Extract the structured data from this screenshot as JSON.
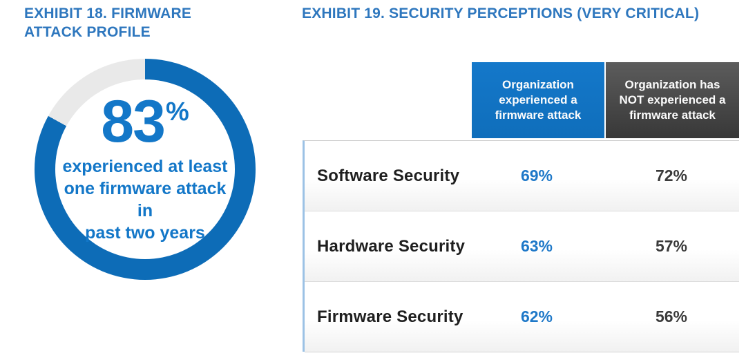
{
  "exhibit18": {
    "title": "EXHIBIT 18. FIRMWARE ATTACK PROFILE",
    "title_lines": [
      "EXHIBIT 18. FIRMWARE",
      "ATTACK PROFILE"
    ]
  },
  "exhibit19": {
    "title": "EXHIBIT 19. SECURITY PERCEPTIONS (VERY CRITICAL)"
  },
  "colors": {
    "title_blue": "#2e77be",
    "donut_blue": "#0d6cb7",
    "donut_remainder_gray": "#e9e9e9",
    "center_text_blue": "#1377c8",
    "value_blue": "#1e78c8",
    "value_dark": "#3a3a3a",
    "row_label_dark": "#1f1f1f",
    "header_blue": "#1173c4",
    "header_gray": "#4a4a4a",
    "table_left_border_blue": "#9cc2e5"
  },
  "chart_data": [
    {
      "type": "pie",
      "subtype": "donut",
      "title": "EXHIBIT 18. FIRMWARE ATTACK PROFILE",
      "slices": [
        {
          "label": "experienced at least one firmware attack in past two years",
          "value": 83,
          "color": "#0d6cb7"
        },
        {
          "label": "remainder (no firmware attack)",
          "value": 17,
          "color": "#e9e9e9"
        }
      ],
      "center_label": {
        "value": "83",
        "unit": "%",
        "caption": "experienced at least one firmware attack in past two years",
        "caption_lines": [
          "experienced at least",
          "one firmware attack in",
          "past two years"
        ]
      }
    },
    {
      "type": "table",
      "title": "EXHIBIT 19. SECURITY PERCEPTIONS (VERY CRITICAL)",
      "columns": [
        {
          "label": "Organization experienced a firmware attack",
          "bg_top": "#1478ca",
          "bg_bottom": "#0f6ebb"
        },
        {
          "label": "Organization has NOT experienced a firmware attack",
          "bg_top": "#5c5c5c",
          "bg_bottom": "#383838"
        }
      ],
      "rows": [
        {
          "label": "Software Security",
          "values": [
            69,
            72
          ],
          "display": [
            "69%",
            "72%"
          ]
        },
        {
          "label": "Hardware Security",
          "values": [
            63,
            57
          ],
          "display": [
            "63%",
            "57%"
          ]
        },
        {
          "label": "Firmware Security",
          "values": [
            62,
            56
          ],
          "display": [
            "62%",
            "56%"
          ]
        }
      ]
    }
  ]
}
